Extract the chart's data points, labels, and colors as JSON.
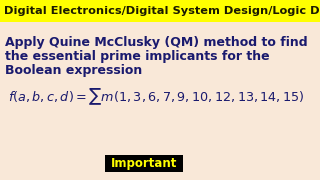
{
  "background_color": "#f9e8d8",
  "header_bg": "#ffff00",
  "header_text": "Digital Electronics/Digital System Design/Logic Design",
  "header_color": "#1a1a00",
  "header_fontsize": 8.2,
  "body_line1": "Apply Quine McClusky (QM) method to find",
  "body_line2": "the essential prime implicants for the",
  "body_line3": "Boolean expression",
  "body_color": "#1a1a6e",
  "body_fontsize": 9.0,
  "formula": "$f(a, b, c, d) = \\sum m(1, 3, 6, 7, 9, 10, 12, 13, 14, 15)$",
  "formula_fontsize": 9.2,
  "formula_color": "#1a1a6e",
  "badge_text": "Important",
  "badge_bg": "#000000",
  "badge_color": "#ffff00",
  "badge_fontsize": 8.5
}
